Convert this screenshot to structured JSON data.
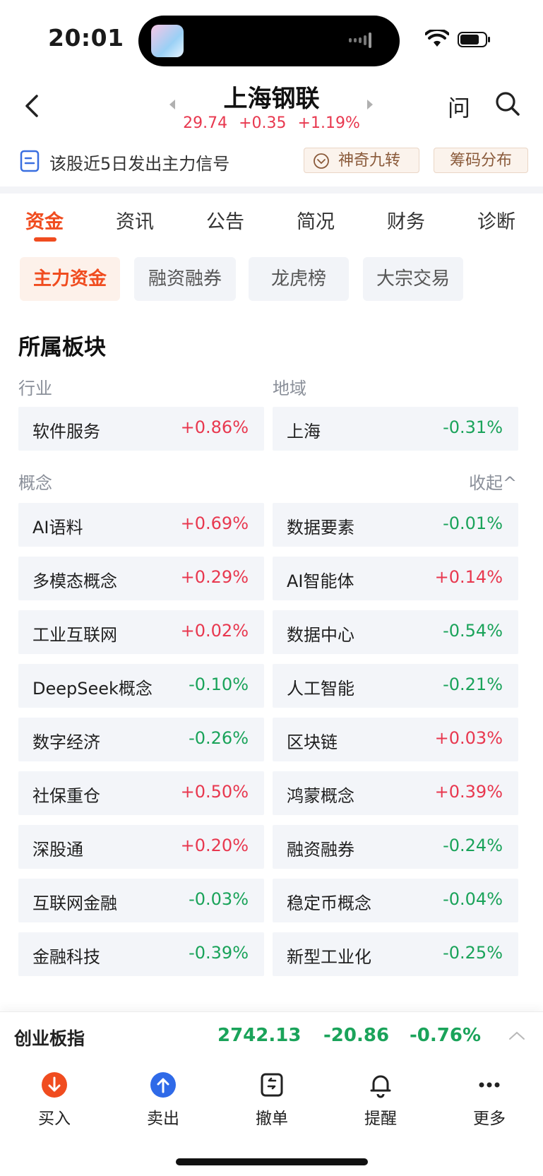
{
  "status": {
    "time": "20:01"
  },
  "header": {
    "title": "上海钢联",
    "price": "29.74",
    "change": "+0.35",
    "change_pct": "+1.19%",
    "ask_label": "问"
  },
  "signal": {
    "text": "该股近5日发出主力信号",
    "chip1": "神奇九转",
    "chip2": "筹码分布"
  },
  "tabs": [
    "资金",
    "资讯",
    "公告",
    "简况",
    "财务",
    "诊断"
  ],
  "subtabs": [
    "主力资金",
    "融资融券",
    "龙虎榜",
    "大宗交易"
  ],
  "section": {
    "title": "所属板块",
    "industry_label": "行业",
    "region_label": "地域",
    "concept_label": "概念",
    "collapse_label": "收起^",
    "industry": {
      "name": "软件服务",
      "pct": "+0.86%"
    },
    "region": {
      "name": "上海",
      "pct": "-0.31%"
    },
    "concepts": [
      {
        "name": "AI语料",
        "pct": "+0.69%"
      },
      {
        "name": "数据要素",
        "pct": "-0.01%"
      },
      {
        "name": "多模态概念",
        "pct": "+0.29%"
      },
      {
        "name": "AI智能体",
        "pct": "+0.14%"
      },
      {
        "name": "工业互联网",
        "pct": "+0.02%"
      },
      {
        "name": "数据中心",
        "pct": "-0.54%"
      },
      {
        "name": "DeepSeek概念",
        "pct": "-0.10%"
      },
      {
        "name": "人工智能",
        "pct": "-0.21%"
      },
      {
        "name": "数字经济",
        "pct": "-0.26%"
      },
      {
        "name": "区块链",
        "pct": "+0.03%"
      },
      {
        "name": "社保重仓",
        "pct": "+0.50%"
      },
      {
        "name": "鸿蒙概念",
        "pct": "+0.39%"
      },
      {
        "name": "深股通",
        "pct": "+0.20%"
      },
      {
        "name": "融资融券",
        "pct": "-0.24%"
      },
      {
        "name": "互联网金融",
        "pct": "-0.03%"
      },
      {
        "name": "稳定币概念",
        "pct": "-0.04%"
      },
      {
        "name": "金融科技",
        "pct": "-0.39%"
      },
      {
        "name": "新型工业化",
        "pct": "-0.25%"
      }
    ]
  },
  "index_bar": {
    "name": "创业板指",
    "value": "2742.13",
    "change": "-20.86",
    "pct": "-0.76%"
  },
  "nav": {
    "buy": "买入",
    "sell": "卖出",
    "cancel": "撤单",
    "remind": "提醒",
    "more": "更多"
  },
  "colors": {
    "up": "#e8384f",
    "down": "#1aa35a",
    "accent": "#f04c1f"
  }
}
